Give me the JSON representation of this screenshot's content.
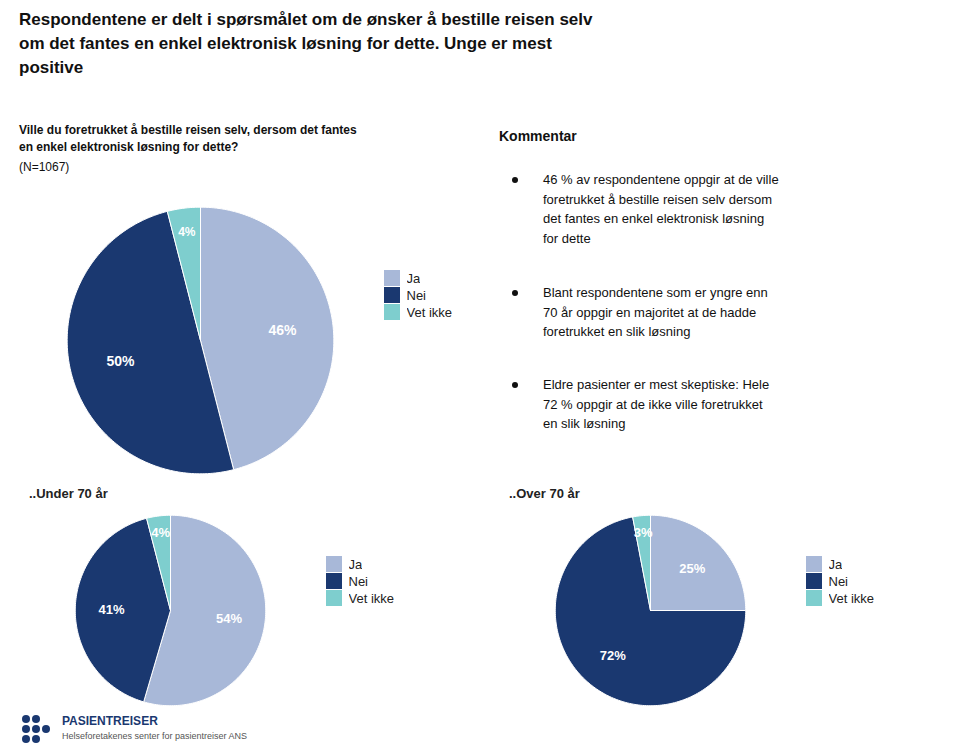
{
  "chart_data": [
    {
      "type": "pie",
      "title": "Respondentene er delt i spørsmålet om de ønsker å bestille reisen selv\nom det fantes en enkel elektronisk løsning for dette. Unge er mest\npositive",
      "subtitle": "Ville du foretrukket å bestille reisen selv, dersom det fantes\nen enkel elektronisk løsning for dette?",
      "categories": [
        "Ja",
        "Nei",
        "Vet ikke"
      ],
      "values": [
        46,
        50,
        4
      ],
      "value_labels": [
        "46%",
        "50%",
        "4%"
      ],
      "colors": [
        "#a8b8d8",
        "#1a3870",
        "#7ecece"
      ],
      "data_labels": true,
      "legend": "right",
      "annotations": [
        " (N=1067)",
        "Kommentar",
        "46 % av respondentene oppgir at de ville\nforetrukket å bestille reisen selv dersom\ndet fantes en enkel elektronisk løsning\nfor dette",
        "Blant respondentene som er yngre enn\n70 år oppgir en majoritet at de hadde\nforetrukket en slik løsning",
        "Eldre pasienter er mest skeptiske: Hele\n72 % oppgir at de ikke ville foretrukket\nen slik løsning",
        "PASIENTREISER",
        "Helseforetakenes senter for pasientreiser ANS"
      ]
    },
    {
      "type": "pie",
      "title": "..Under 70 år",
      "categories": [
        "Ja",
        "Nei",
        "Vet ikke"
      ],
      "values": [
        54,
        41,
        4
      ],
      "value_labels": [
        "54%",
        "41%",
        "4%"
      ],
      "colors": [
        "#a8b8d8",
        "#1a3870",
        "#7ecece"
      ],
      "data_labels": true,
      "legend": "right"
    },
    {
      "type": "pie",
      "title": "..Over 70 år",
      "categories": [
        "Ja",
        "Nei",
        "Vet ikke"
      ],
      "values": [
        25,
        72,
        3
      ],
      "value_labels": [
        "25%",
        "72%",
        "3%"
      ],
      "colors": [
        "#a8b8d8",
        "#1a3870",
        "#7ecece"
      ],
      "data_labels": true,
      "legend": "right"
    }
  ]
}
